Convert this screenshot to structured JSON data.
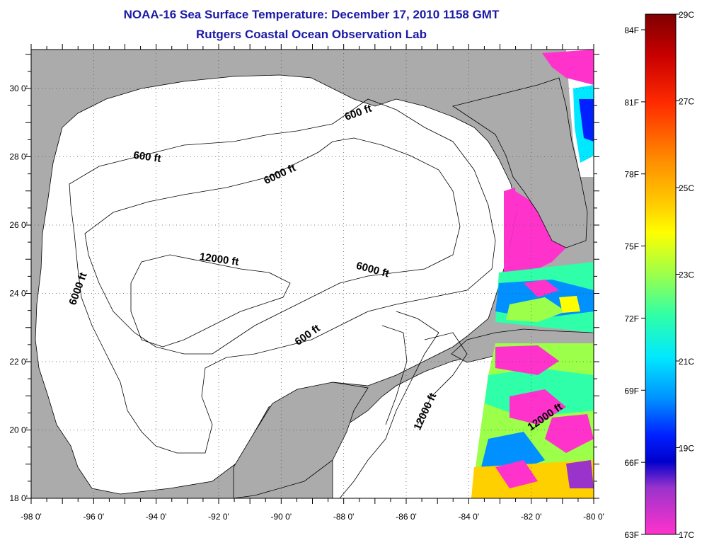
{
  "title": "NOAA-16 Sea Surface Temperature:  December 17, 2010 1158 GMT",
  "subtitle": "Rutgers Coastal Ocean Observation Lab",
  "map": {
    "lon_range": [
      -98,
      -80
    ],
    "lat_range": [
      18,
      31
    ],
    "x_ticks": [
      "-98 0'",
      "-96 0'",
      "-94 0'",
      "-92 0'",
      "-90 0'",
      "-88 0'",
      "-86 0'",
      "-84 0'",
      "-82 0'",
      "-80 0'"
    ],
    "y_ticks": [
      "18 0'",
      "20 0'",
      "22 0'",
      "24 0'",
      "26 0'",
      "28 0'",
      "30 0'"
    ],
    "land_color": "#ababab",
    "ocean_color": "#ffffff",
    "grid": "dotted",
    "contour_labels": [
      {
        "text": "600 ft",
        "lon": -94.3,
        "lat": 27.9
      },
      {
        "text": "600 ft",
        "lon": -87.5,
        "lat": 29.2
      },
      {
        "text": "6000 ft",
        "lon": -90.0,
        "lat": 27.4
      },
      {
        "text": "6000 ft",
        "lon": -96.4,
        "lat": 24.1
      },
      {
        "text": "12000 ft",
        "lon": -92.0,
        "lat": 24.9
      },
      {
        "text": "6000 ft",
        "lon": -87.1,
        "lat": 24.6
      },
      {
        "text": "600 ft",
        "lon": -89.1,
        "lat": 22.7
      },
      {
        "text": "12000 ft",
        "lon": -85.3,
        "lat": 20.5
      },
      {
        "text": "12000 ft",
        "lon": -81.5,
        "lat": 20.3
      }
    ]
  },
  "colorbar": {
    "gradient_top_to_bottom": [
      "#7f0000",
      "#c80000",
      "#ff2a00",
      "#ff8c00",
      "#ffd000",
      "#ffff00",
      "#9cff4a",
      "#2effa8",
      "#00e8ff",
      "#0090ff",
      "#0020ff",
      "#0000cc",
      "#9933cc",
      "#ff33cc"
    ],
    "fahrenheit": [
      "84F",
      "81F",
      "78F",
      "75F",
      "72F",
      "69F",
      "66F",
      "63F"
    ],
    "celsius": [
      "29C",
      "27C",
      "25C",
      "23C",
      "21C",
      "19C",
      "17C"
    ]
  }
}
